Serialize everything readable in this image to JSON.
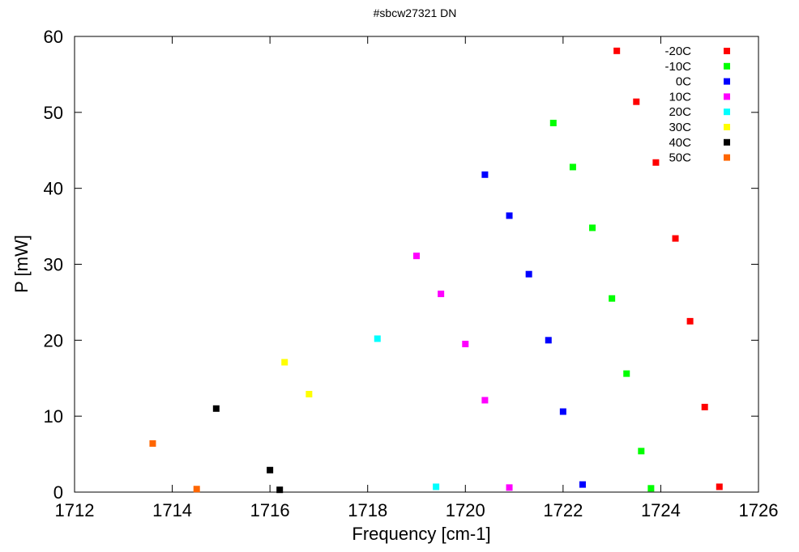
{
  "chart_data": {
    "type": "scatter",
    "title": "#sbcw27321 DN",
    "xlabel": "Frequency [cm-1]",
    "ylabel": "P [mW]",
    "xlim": [
      1712,
      1726
    ],
    "ylim": [
      0,
      60
    ],
    "xticks": [
      1712,
      1714,
      1716,
      1718,
      1720,
      1722,
      1724,
      1726
    ],
    "yticks": [
      0,
      10,
      20,
      30,
      40,
      50,
      60
    ],
    "grid": false,
    "legend_position": "top-right",
    "series": [
      {
        "name": "-20C",
        "color": "#ff0000",
        "points": [
          [
            1723.1,
            58.1
          ],
          [
            1723.5,
            51.4
          ],
          [
            1723.9,
            43.4
          ],
          [
            1724.3,
            33.4
          ],
          [
            1724.6,
            22.5
          ],
          [
            1724.9,
            11.2
          ],
          [
            1725.2,
            0.7
          ]
        ]
      },
      {
        "name": "-10C",
        "color": "#00ff00",
        "points": [
          [
            1721.8,
            48.6
          ],
          [
            1722.2,
            42.8
          ],
          [
            1722.6,
            34.8
          ],
          [
            1723.0,
            25.5
          ],
          [
            1723.3,
            15.6
          ],
          [
            1723.6,
            5.4
          ],
          [
            1723.8,
            0.5
          ]
        ]
      },
      {
        "name": "0C",
        "color": "#0000ff",
        "points": [
          [
            1720.4,
            41.8
          ],
          [
            1720.9,
            36.4
          ],
          [
            1721.3,
            28.7
          ],
          [
            1721.7,
            20.0
          ],
          [
            1722.0,
            10.6
          ],
          [
            1722.4,
            1.0
          ]
        ]
      },
      {
        "name": "10C",
        "color": "#ff00ff",
        "points": [
          [
            1719.0,
            31.1
          ],
          [
            1719.5,
            26.1
          ],
          [
            1720.0,
            19.5
          ],
          [
            1720.4,
            12.1
          ],
          [
            1720.9,
            0.6
          ]
        ]
      },
      {
        "name": "20C",
        "color": "#00ffff",
        "points": [
          [
            1718.2,
            20.2
          ],
          [
            1719.4,
            0.7
          ]
        ]
      },
      {
        "name": "30C",
        "color": "#ffff00",
        "points": [
          [
            1716.3,
            17.1
          ],
          [
            1716.8,
            12.9
          ]
        ]
      },
      {
        "name": "40C",
        "color": "#000000",
        "points": [
          [
            1714.9,
            11.0
          ],
          [
            1716.0,
            2.9
          ],
          [
            1716.2,
            0.3
          ]
        ]
      },
      {
        "name": "50C",
        "color": "#ff6600",
        "points": [
          [
            1713.6,
            6.4
          ],
          [
            1714.5,
            0.4
          ]
        ]
      }
    ]
  }
}
